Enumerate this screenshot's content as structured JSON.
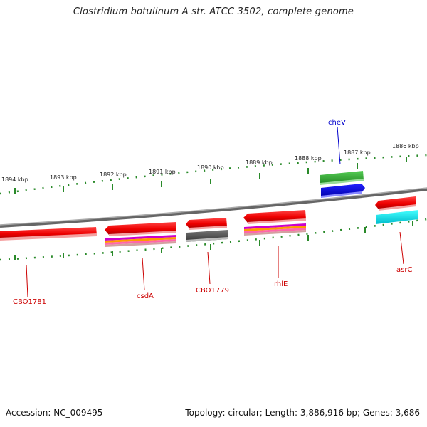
{
  "title": "Clostridium botulinum A str. ATCC 3502, complete genome",
  "footer": {
    "accession": "Accession: NC_009495",
    "summary": "Topology: circular; Length: 3,886,916 bp; Genes: 3,686"
  },
  "colors": {
    "backbone": "#888888",
    "ticks": "#2a8a2a",
    "label_red": "#cc0000",
    "label_blue": "#0000cc",
    "gene_red": "#ee0000",
    "gene_green": "#33aa33",
    "gene_blue": "#0000dd",
    "gene_gray": "#555555",
    "gene_cyan": "#00dddd"
  },
  "ticks": [
    {
      "label": "1894 kbp"
    },
    {
      "label": "1893 kbp"
    },
    {
      "label": "1892 kbp"
    },
    {
      "label": "1891 kbp"
    },
    {
      "label": "1890 kbp"
    },
    {
      "label": "1889 kbp"
    },
    {
      "label": "1888 kbp"
    },
    {
      "label": "1887 kbp"
    },
    {
      "label": "1886 kbp"
    }
  ],
  "genes": [
    {
      "name": "CBO1781",
      "color": "label_red"
    },
    {
      "name": "csdA",
      "color": "label_red"
    },
    {
      "name": "CBO1779",
      "color": "label_red"
    },
    {
      "name": "rhlE",
      "color": "label_red"
    },
    {
      "name": "cheV",
      "color": "label_blue"
    },
    {
      "name": "asrC",
      "color": "label_red"
    }
  ]
}
